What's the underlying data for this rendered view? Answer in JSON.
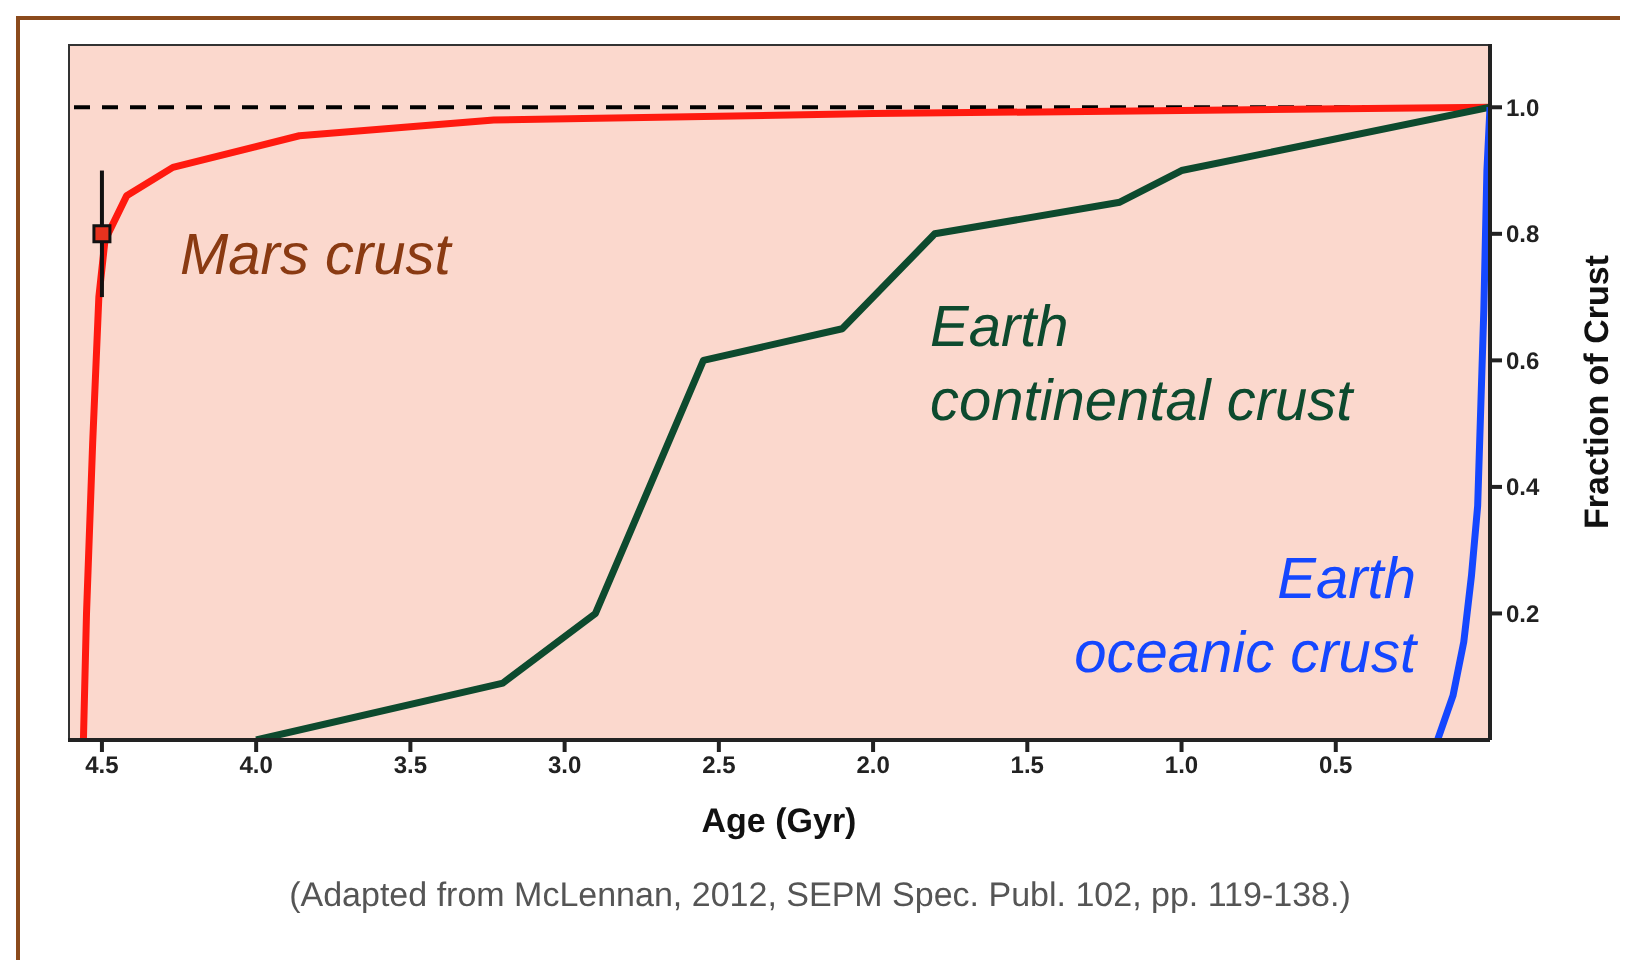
{
  "chart_data": {
    "type": "line",
    "xlabel": "Age (Gyr)",
    "ylabel": "Fraction of Crust",
    "xlim": [
      4.61,
      0
    ],
    "xticks": [
      4.5,
      {
        "value": 4,
        "label": "4.0"
      },
      3.5,
      {
        "value": 3,
        "label": "3.0"
      },
      2.5,
      {
        "value": 2,
        "label": "2.0"
      },
      1.5,
      {
        "value": 1,
        "label": "1.0"
      },
      0.5
    ],
    "ylim": [
      0,
      1.1
    ],
    "yticks": [
      0.2,
      0.4,
      0.6,
      0.8,
      {
        "value": 1,
        "label": "1.0"
      }
    ],
    "marker": "none",
    "line_style": "solid",
    "series": [
      {
        "name": "Mars crust",
        "color": "#ff1a0f",
        "x": [
          4.56,
          4.55,
          4.53,
          4.51,
          4.49,
          4.42,
          4.27,
          3.86,
          3.23,
          2.0,
          1.0,
          0
        ],
        "values": [
          0,
          0.2,
          0.47,
          0.7,
          0.79,
          0.86,
          0.905,
          0.955,
          0.98,
          0.99,
          0.995,
          1.0
        ]
      },
      {
        "name": "Earth continental crust",
        "color": "#0d4a2e",
        "x": [
          4.0,
          3.2,
          2.9,
          2.55,
          2.1,
          1.8,
          1.2,
          1.0,
          0
        ],
        "values": [
          0,
          0.09,
          0.2,
          0.6,
          0.65,
          0.8,
          0.85,
          0.9,
          1.0
        ]
      },
      {
        "name": "Earth oceanic crust",
        "color": "#1447ff",
        "x": [
          0.17,
          0.12,
          0.085,
          0.06,
          0.04,
          0.02,
          0.01,
          0
        ],
        "values": [
          0,
          0.07,
          0.155,
          0.26,
          0.37,
          0.68,
          0.9,
          1.0
        ]
      },
      {
        "type": "scatter",
        "marker": "square",
        "color": "#e8321e",
        "x": [
          4.5
        ],
        "values": [
          0.8
        ],
        "errors": [
          0.1
        ]
      }
    ],
    "ref_lines": [
      {
        "axis": "y",
        "value": 1,
        "color": "#000000",
        "line_style": "dashed"
      }
    ],
    "annotations": [
      "(Adapted from McLennan, 2012, SEPM Spec. Publ. 102, pp. 119-138.)"
    ]
  }
}
